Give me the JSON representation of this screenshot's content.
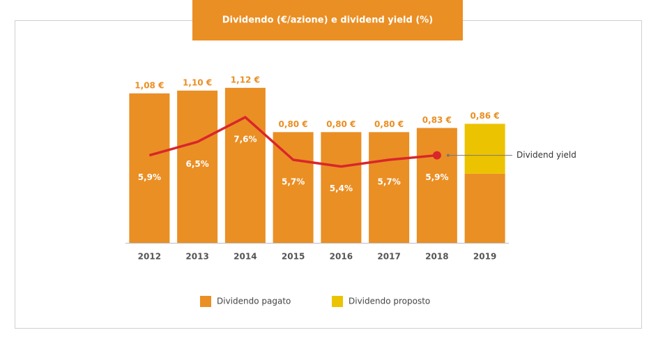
{
  "chart_data": {
    "type": "bar",
    "title": "Dividendo (€/azione) e dividend yield (%)",
    "categories": [
      "2012",
      "2013",
      "2014",
      "2015",
      "2016",
      "2017",
      "2018",
      "2019"
    ],
    "series": [
      {
        "name": "Dividendo pagato",
        "color": "#ea8f24",
        "values": [
          1.08,
          1.1,
          1.12,
          0.8,
          0.8,
          0.8,
          0.83,
          0.5
        ]
      },
      {
        "name": "Dividendo proposto",
        "color": "#ecc300",
        "values": [
          null,
          null,
          null,
          null,
          null,
          null,
          null,
          0.36
        ]
      },
      {
        "name": "Dividend yield",
        "type": "line",
        "axis": "y2",
        "color": "#d9262b",
        "values": [
          5.9,
          6.5,
          7.6,
          5.7,
          5.4,
          5.7,
          5.9,
          null
        ],
        "value_labels": [
          "5,9%",
          "6,5%",
          "7,6%",
          "5,7%",
          "5,4%",
          "5,7%",
          "5,9%",
          null
        ]
      }
    ],
    "totals": [
      1.08,
      1.1,
      1.12,
      0.8,
      0.8,
      0.8,
      0.83,
      0.86
    ],
    "total_labels": [
      "1,08 €",
      "1,10 €",
      "1,12 €",
      "0,80 €",
      "0,80 €",
      "0,80 €",
      "0,83 €",
      "0,86 €"
    ],
    "ylim": [
      0,
      1.2
    ],
    "y2lim": [
      2,
      9.4
    ]
  }
}
